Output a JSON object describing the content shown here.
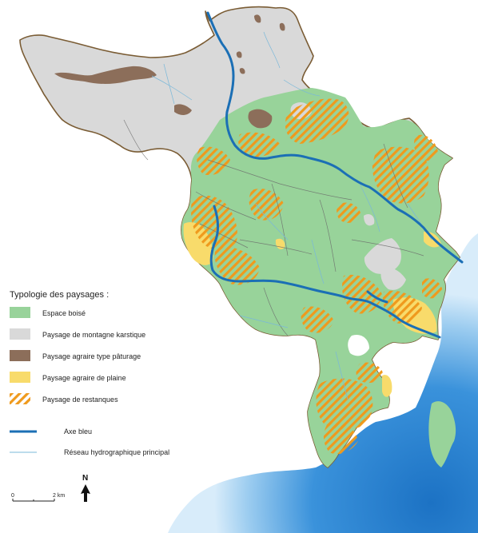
{
  "legend": {
    "title": "Typologie des paysages :",
    "items": [
      {
        "key": "boise",
        "label": "Espace boisé",
        "color": "#98d39a"
      },
      {
        "key": "karst",
        "label": "Paysage de montagne karstique",
        "color": "#d9d9d9"
      },
      {
        "key": "paturage",
        "label": "Paysage agraire type pâturage",
        "color": "#8c6e5a"
      },
      {
        "key": "plaine",
        "label": "Paysage agraire de plaine",
        "color": "#f8db6b"
      },
      {
        "key": "restanques",
        "label": "Paysage de restanques",
        "color": "#ef9a1d"
      }
    ],
    "lines": [
      {
        "key": "axe",
        "label": "Axe bleu",
        "color": "#1b6fb5"
      },
      {
        "key": "reseau",
        "label": "Réseau hydrographique principal",
        "color": "#7ab8d9"
      }
    ]
  },
  "scale": {
    "start": "0",
    "end": "2 km"
  },
  "north": "N",
  "colors": {
    "sea": "#2e86d3",
    "sea_light": "#b9dcf5",
    "outline": "#7a5c34",
    "road_lines": "#6a6a6a"
  }
}
